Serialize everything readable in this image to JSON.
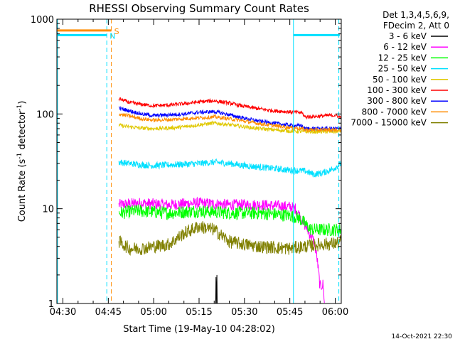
{
  "chart_data": {
    "type": "line",
    "title": "RHESSI Observing Summary Count Rates",
    "xlabel": "Start Time (19-May-10 04:28:02)",
    "ylabel_main": "Count Rate (s",
    "ylabel_sup1": "-1",
    "ylabel_mid": " detector",
    "ylabel_sup2": "-1",
    "ylabel_end": ")",
    "timestamp": "14-Oct-2021 22:30",
    "y_scale": "log",
    "ylim": [
      1,
      1000
    ],
    "xlim_minutes": [
      268,
      362
    ],
    "x_ticks": [
      {
        "label": "04:30",
        "min": 270
      },
      {
        "label": "04:45",
        "min": 285
      },
      {
        "label": "05:00",
        "min": 300
      },
      {
        "label": "05:15",
        "min": 315
      },
      {
        "label": "05:30",
        "min": 330
      },
      {
        "label": "05:45",
        "min": 345
      },
      {
        "label": "06:00",
        "min": 360
      }
    ],
    "y_ticks": [
      {
        "label": "1",
        "value": 1
      },
      {
        "label": "10",
        "value": 10
      },
      {
        "label": "100",
        "value": 100
      },
      {
        "label": "1000",
        "value": 1000
      }
    ],
    "legend_header": [
      "Det 1,3,4,5,6,9,",
      "FDecim 2, Att 0"
    ],
    "legend_placement": "right",
    "flags": [
      {
        "label": "S",
        "color": "#ff8c00",
        "y": 760,
        "from": 268,
        "to": 286
      },
      {
        "label": "N",
        "color": "#00e0ff",
        "y": 680,
        "from": 268,
        "to": 284.5
      }
    ],
    "series": [
      {
        "name": "3 - 6 keV",
        "color": "#000000",
        "points": [
          [
            320.5,
            1
          ],
          [
            320.6,
            1.9
          ],
          [
            320.7,
            1
          ],
          [
            320.9,
            2.0
          ],
          [
            321.0,
            1
          ]
        ]
      },
      {
        "name": "6 - 12 keV",
        "color": "#ff00ff",
        "points": [
          [
            288.5,
            11
          ],
          [
            295,
            11.5
          ],
          [
            305,
            11
          ],
          [
            315,
            11.5
          ],
          [
            325,
            11
          ],
          [
            335,
            11
          ],
          [
            345,
            10.5
          ],
          [
            347,
            10
          ],
          [
            353,
            4.5
          ],
          [
            354,
            3
          ],
          [
            355,
            1.5
          ],
          [
            356,
            1.6
          ],
          [
            356.5,
            1
          ]
        ]
      },
      {
        "name": "12 - 25 keV",
        "color": "#00ff00",
        "points": [
          [
            288.5,
            9
          ],
          [
            295,
            9.5
          ],
          [
            305,
            9
          ],
          [
            315,
            9.5
          ],
          [
            325,
            9
          ],
          [
            335,
            9
          ],
          [
            345,
            8.5
          ],
          [
            348,
            8
          ],
          [
            352,
            6
          ],
          [
            356,
            6
          ],
          [
            360,
            6
          ],
          [
            362,
            6
          ]
        ]
      },
      {
        "name": "25 - 50 keV",
        "color": "#00e0ff",
        "points": [
          [
            288.5,
            31
          ],
          [
            292,
            30
          ],
          [
            296,
            29
          ],
          [
            300,
            28.5
          ],
          [
            305,
            29
          ],
          [
            310,
            29.5
          ],
          [
            315,
            30
          ],
          [
            320,
            31
          ],
          [
            325,
            30
          ],
          [
            330,
            28.5
          ],
          [
            335,
            27.5
          ],
          [
            340,
            26.5
          ],
          [
            345,
            25.5
          ],
          [
            350,
            25
          ],
          [
            353,
            23
          ],
          [
            356,
            24
          ],
          [
            359,
            26
          ],
          [
            362,
            30
          ]
        ]
      },
      {
        "name": "50 - 100 keV",
        "color": "#e0c800",
        "points": [
          [
            288.5,
            76
          ],
          [
            292,
            73
          ],
          [
            296,
            71
          ],
          [
            300,
            70
          ],
          [
            305,
            71
          ],
          [
            310,
            73
          ],
          [
            315,
            77
          ],
          [
            320,
            80
          ],
          [
            325,
            77
          ],
          [
            330,
            73
          ],
          [
            335,
            70
          ],
          [
            340,
            68
          ],
          [
            345,
            66
          ],
          [
            350,
            65
          ],
          [
            355,
            65
          ],
          [
            360,
            65
          ],
          [
            362,
            66
          ]
        ]
      },
      {
        "name": "100 - 300 keV",
        "color": "#ff0000",
        "points": [
          [
            288.5,
            145
          ],
          [
            292,
            132
          ],
          [
            296,
            126
          ],
          [
            300,
            122
          ],
          [
            305,
            124
          ],
          [
            310,
            128
          ],
          [
            315,
            134
          ],
          [
            320,
            138
          ],
          [
            325,
            130
          ],
          [
            330,
            120
          ],
          [
            335,
            113
          ],
          [
            340,
            108
          ],
          [
            345,
            105
          ],
          [
            349,
            103
          ],
          [
            350,
            93
          ],
          [
            355,
            95
          ],
          [
            360,
            97
          ],
          [
            362,
            92
          ]
        ]
      },
      {
        "name": "300 - 800 keV",
        "color": "#0000ff",
        "points": [
          [
            288.5,
            115
          ],
          [
            292,
            108
          ],
          [
            296,
            100
          ],
          [
            300,
            96
          ],
          [
            305,
            98
          ],
          [
            310,
            100
          ],
          [
            315,
            104
          ],
          [
            320,
            106
          ],
          [
            325,
            98
          ],
          [
            330,
            90
          ],
          [
            335,
            84
          ],
          [
            340,
            80
          ],
          [
            345,
            76
          ],
          [
            349,
            75
          ],
          [
            350,
            70
          ],
          [
            355,
            70
          ],
          [
            360,
            70
          ],
          [
            362,
            70
          ]
        ]
      },
      {
        "name": "800 - 7000 keV",
        "color": "#ff8c00",
        "points": [
          [
            288.5,
            100
          ],
          [
            292,
            95
          ],
          [
            296,
            89
          ],
          [
            300,
            86
          ],
          [
            305,
            87
          ],
          [
            310,
            89
          ],
          [
            315,
            91
          ],
          [
            320,
            93
          ],
          [
            325,
            89
          ],
          [
            330,
            84
          ],
          [
            335,
            79
          ],
          [
            340,
            75
          ],
          [
            345,
            72
          ],
          [
            349,
            70
          ],
          [
            350,
            68
          ],
          [
            355,
            68
          ],
          [
            360,
            68
          ],
          [
            362,
            68
          ]
        ]
      },
      {
        "name": "7000 - 15000 keV",
        "color": "#808000",
        "points": [
          [
            288.5,
            4.5
          ],
          [
            292,
            3.8
          ],
          [
            296,
            3.8
          ],
          [
            300,
            4.0
          ],
          [
            305,
            4.2
          ],
          [
            310,
            5.5
          ],
          [
            315,
            6.5
          ],
          [
            320,
            6.0
          ],
          [
            325,
            4.5
          ],
          [
            330,
            4.2
          ],
          [
            335,
            4.0
          ],
          [
            340,
            3.9
          ],
          [
            345,
            3.8
          ],
          [
            350,
            4.0
          ],
          [
            355,
            4.2
          ],
          [
            360,
            4.3
          ],
          [
            362,
            4.5
          ]
        ]
      }
    ],
    "event_lines": [
      {
        "color": "#00e0ff",
        "style": "solid",
        "min": 268.2
      },
      {
        "color": "#00e0ff",
        "style": "dashed",
        "min": 284.5
      },
      {
        "color": "#ff8c00",
        "style": "dashed",
        "min": 286
      },
      {
        "color": "#00e0ff",
        "style": "solid",
        "min": 346.2
      },
      {
        "color": "#00e0ff",
        "style": "dashed",
        "min": 361.2
      }
    ]
  }
}
